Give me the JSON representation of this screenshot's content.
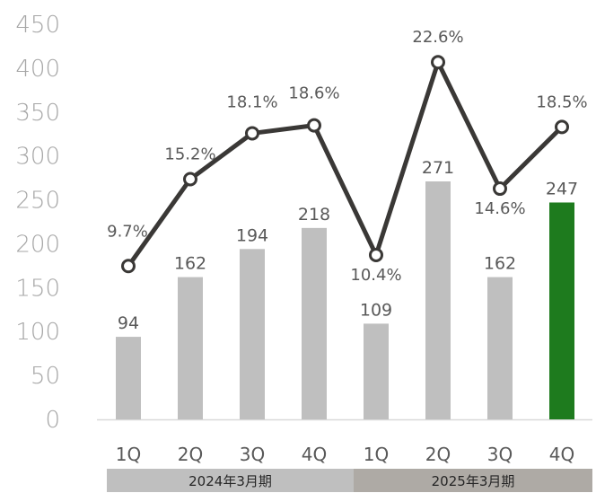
{
  "chart_data": {
    "type": "bar",
    "categories": [
      "1Q",
      "2Q",
      "3Q",
      "4Q",
      "1Q",
      "2Q",
      "3Q",
      "4Q"
    ],
    "groups": [
      {
        "label": "2024年3月期",
        "span": 4,
        "color": "#bfbfbf"
      },
      {
        "label": "2025年3月期",
        "span": 4,
        "color": "#aeaaa5"
      }
    ],
    "series": [
      {
        "kind": "bar",
        "values": [
          94,
          162,
          194,
          218,
          109,
          271,
          162,
          247
        ],
        "labels": [
          "94",
          "162",
          "194",
          "218",
          "109",
          "271",
          "162",
          "247"
        ],
        "colors": [
          "#bfbfbf",
          "#bfbfbf",
          "#bfbfbf",
          "#bfbfbf",
          "#bfbfbf",
          "#bfbfbf",
          "#bfbfbf",
          "#1e7b1e"
        ]
      },
      {
        "kind": "line",
        "values": [
          9.7,
          15.2,
          18.1,
          18.6,
          10.4,
          22.6,
          14.6,
          18.5
        ],
        "labels": [
          "9.7%",
          "15.2%",
          "18.1%",
          "18.6%",
          "10.4%",
          "22.6%",
          "14.6%",
          "18.5%"
        ],
        "color": "#3a3836"
      }
    ],
    "yticks": [
      "0",
      "50",
      "100",
      "150",
      "200",
      "250",
      "300",
      "350",
      "400",
      "450"
    ],
    "ylim": [
      0,
      450
    ],
    "y2lim": [
      0,
      25
    ],
    "grid": false,
    "legend": "none"
  }
}
